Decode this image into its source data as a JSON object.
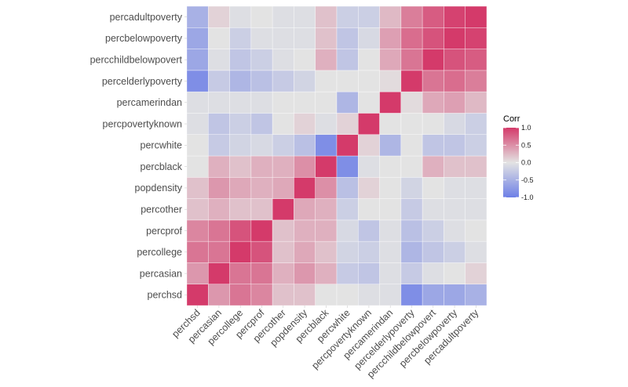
{
  "chart_data": {
    "type": "heatmap",
    "title": "",
    "xlabel": "",
    "ylabel": "",
    "variables": [
      "perchsd",
      "percasian",
      "percollege",
      "percprof",
      "percother",
      "popdensity",
      "percblack",
      "percwhite",
      "percpovertyknown",
      "percamerindan",
      "percelderlypoverty",
      "percchildbelowpovert",
      "percbelowpoverty",
      "percadultpoverty"
    ],
    "x_order": "left-to-right",
    "y_order": "bottom-to-top",
    "matrix": [
      [
        1,
        0.45,
        0.65,
        0.55,
        0.2,
        0.2,
        0,
        0,
        -0.05,
        -0.05,
        -0.85,
        -0.6,
        -0.6,
        -0.5
      ],
      [
        0.45,
        1,
        0.65,
        0.65,
        0.3,
        0.45,
        0.3,
        -0.25,
        -0.3,
        -0.05,
        -0.25,
        -0.05,
        0,
        0.1
      ],
      [
        0.65,
        0.65,
        1,
        0.85,
        0.2,
        0.35,
        0.2,
        -0.15,
        -0.2,
        -0.05,
        -0.45,
        -0.3,
        -0.2,
        -0.05
      ],
      [
        0.55,
        0.65,
        0.85,
        1,
        0.2,
        0.3,
        0.3,
        -0.1,
        -0.3,
        -0.05,
        -0.35,
        -0.2,
        -0.05,
        0
      ],
      [
        0.2,
        0.3,
        0.2,
        0.2,
        1,
        0.35,
        0.3,
        -0.2,
        0,
        0,
        -0.25,
        -0.05,
        -0.05,
        -0.05
      ],
      [
        0.2,
        0.45,
        0.35,
        0.3,
        0.35,
        1,
        0.5,
        -0.35,
        0.1,
        0,
        -0.15,
        0,
        -0.05,
        -0.05
      ],
      [
        0,
        0.3,
        0.2,
        0.3,
        0.3,
        0.5,
        1,
        -0.85,
        -0.05,
        0,
        0,
        0.3,
        0.2,
        0.2
      ],
      [
        0,
        -0.25,
        -0.15,
        -0.1,
        -0.2,
        -0.35,
        -0.85,
        1,
        0.1,
        -0.45,
        0,
        -0.3,
        -0.3,
        -0.2
      ],
      [
        -0.05,
        -0.3,
        -0.2,
        -0.3,
        0,
        0.1,
        -0.05,
        0.1,
        1,
        0,
        0,
        0,
        -0.1,
        -0.2
      ],
      [
        -0.05,
        -0.05,
        -0.05,
        -0.05,
        0,
        0,
        0,
        -0.45,
        0,
        1,
        0.05,
        0.35,
        0.4,
        0.25
      ],
      [
        -0.85,
        -0.25,
        -0.45,
        -0.35,
        -0.25,
        -0.15,
        0,
        0,
        0,
        0.05,
        1,
        0.65,
        0.7,
        0.6
      ],
      [
        -0.6,
        -0.05,
        -0.3,
        -0.2,
        -0.05,
        0,
        0.3,
        -0.3,
        0,
        0.35,
        0.65,
        1,
        0.85,
        0.8
      ],
      [
        -0.6,
        0,
        -0.2,
        -0.05,
        -0.05,
        -0.05,
        0.2,
        -0.3,
        -0.1,
        0.4,
        0.7,
        0.85,
        1,
        0.95
      ],
      [
        -0.5,
        0.1,
        -0.05,
        0,
        -0.05,
        -0.05,
        0.2,
        -0.2,
        -0.2,
        0.25,
        0.6,
        0.8,
        0.95,
        1
      ]
    ],
    "value_range": [
      -1,
      1
    ],
    "colors": {
      "low": "#6D7FE6",
      "mid": "#E3E3E3",
      "high": "#D43A6A"
    },
    "legend": {
      "title": "Corr",
      "ticks": [
        "1.0",
        "0.5",
        "0.0",
        "-0.5",
        "-1.0"
      ],
      "tick_values": [
        1,
        0.5,
        0,
        -0.5,
        -1
      ],
      "position": "right"
    },
    "grid": false
  }
}
